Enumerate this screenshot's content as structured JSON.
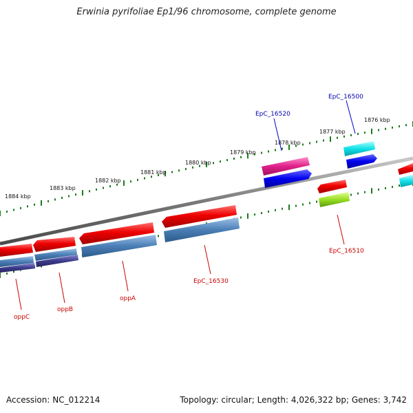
{
  "title": "Erwinia pyrifoliae Ep1/96 chromosome, complete genome",
  "footer": {
    "accession": "Accession: NC_012214",
    "summary": "Topology: circular; Length: 4,026,322 bp; Genes: 3,742"
  },
  "ticks": [
    "1884 kbp",
    "1883 kbp",
    "1882 kbp",
    "1881 kbp",
    "1880 kbp",
    "1879 kbp",
    "1878 kbp",
    "1877 kbp",
    "1876 kbp"
  ],
  "genes": [
    {
      "name": "EpC_16520",
      "color": "#0000aa"
    },
    {
      "name": "EpC_16500",
      "color": "#0000aa"
    },
    {
      "name": "EpC_16510",
      "color": "#cc0000"
    },
    {
      "name": "EpC_16530",
      "color": "#cc0000"
    },
    {
      "name": "oppA",
      "color": "#cc0000"
    },
    {
      "name": "oppB",
      "color": "#cc0000"
    },
    {
      "name": "oppC",
      "color": "#cc0000"
    }
  ],
  "colors": {
    "backbone": "#7a7a7a",
    "tick": "#1a7a1a",
    "cds_red": "#ee0000",
    "steel_blue": "#4a7eb5",
    "slate": "#3d3b8c",
    "magenta": "#e0208a",
    "blue": "#0000ee",
    "cyan": "#10e0e8",
    "lime": "#99dd22"
  }
}
